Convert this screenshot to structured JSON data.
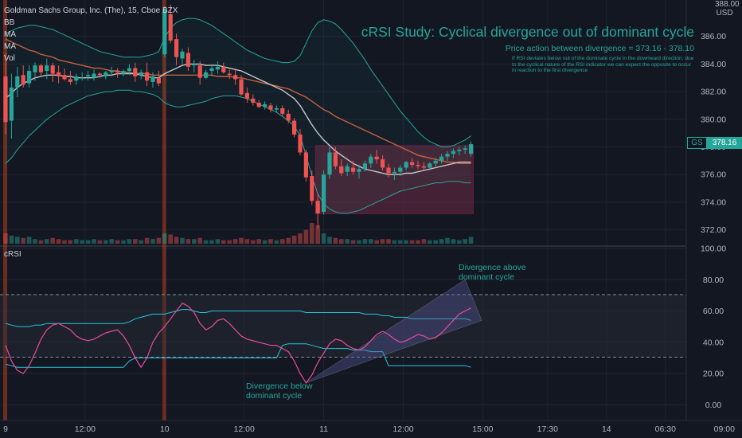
{
  "legend": {
    "symbol": "Goldman Sachs Group, Inc. (The), 15, Cboe BZX",
    "items": [
      "BB",
      "MA",
      "MA",
      "Vol"
    ]
  },
  "annotations": {
    "title": "cRSI Study: Cyclical divergence out of dominant cycle",
    "subtitle": "Price action between divergence = 373.16 - 378.10",
    "note": "If RSI deviates below out of the dominate cycle in the downward direction, due to the cyclical nature of the RSI indicator we can expect the opposite to occur in reaction to the first divergence",
    "divergence_above": [
      "Divergence above",
      "dominant cycle"
    ],
    "divergence_below": [
      "Divergence below",
      "dominant cycle"
    ]
  },
  "price_axis": {
    "currency": "USD",
    "top_partial": "388.00",
    "last_symbol": "GS",
    "last_value": "378.16"
  },
  "rsi_pane": {
    "label": "cRSI"
  },
  "colors": {
    "background": "#131722",
    "up": "#26a69a",
    "down": "#ef5350",
    "bb": "#26a69a",
    "ma_fast": "#c8c8c8",
    "ma_slow": "#c9603f",
    "rsi": "#ec4b9c",
    "band": "#26c6da",
    "box_fill": "#6d2a45",
    "triangle": "#5c5fa8",
    "highlight": "#a33b1e"
  },
  "chart_data": [
    {
      "type": "candlestick",
      "title": "",
      "ylim": [
        371,
        388.4
      ],
      "y_ticks": [
        "372.00",
        "374.00",
        "376.00",
        "378.00",
        "380.00",
        "382.00",
        "384.00",
        "386.00"
      ],
      "x_ticks": [
        "9",
        "12:00",
        "10",
        "12:00",
        "11",
        "12:00",
        "15:00",
        "17:30",
        "14",
        "06:30",
        "09:00"
      ],
      "x_tick_index": [
        0,
        13.5,
        27,
        40.5,
        54,
        67.5,
        81,
        92,
        102,
        112,
        122
      ],
      "candles": [
        [
          383.1,
          384.8,
          378.9,
          379.8
        ],
        [
          379.9,
          383.3,
          378.6,
          382.3
        ],
        [
          382.3,
          383.8,
          381.6,
          383.1
        ],
        [
          383.2,
          383.9,
          382.3,
          382.5
        ],
        [
          382.6,
          383.9,
          382.3,
          383.5
        ],
        [
          383.4,
          384.1,
          382.8,
          383.9
        ],
        [
          383.9,
          384.0,
          383.1,
          383.4
        ],
        [
          383.5,
          384.4,
          382.9,
          383.9
        ],
        [
          383.9,
          384.1,
          382.7,
          383.3
        ],
        [
          383.4,
          383.9,
          382.6,
          383.1
        ],
        [
          383.2,
          383.7,
          382.8,
          382.9
        ],
        [
          382.9,
          383.5,
          382.5,
          382.7
        ],
        [
          382.8,
          383.3,
          382.5,
          383.1
        ],
        [
          383.0,
          383.4,
          382.8,
          383.0
        ],
        [
          383.1,
          383.5,
          382.8,
          383.2
        ],
        [
          383.0,
          383.6,
          382.8,
          383.3
        ],
        [
          383.3,
          383.4,
          383.0,
          383.2
        ],
        [
          383.1,
          383.5,
          382.9,
          383.4
        ],
        [
          383.4,
          383.8,
          383.1,
          383.5
        ],
        [
          383.5,
          383.7,
          383.0,
          383.4
        ],
        [
          383.3,
          383.6,
          383.1,
          383.5
        ],
        [
          383.5,
          384.0,
          383.2,
          383.7
        ],
        [
          383.7,
          384.1,
          382.7,
          383.1
        ],
        [
          383.2,
          383.6,
          382.9,
          383.4
        ],
        [
          383.4,
          384.1,
          382.4,
          382.8
        ],
        [
          382.7,
          383.4,
          382.3,
          383.1
        ],
        [
          383.0,
          383.5,
          382.4,
          382.6
        ],
        [
          384.7,
          388.2,
          384.5,
          387.9
        ],
        [
          387.6,
          388.3,
          385.5,
          385.7
        ],
        [
          385.8,
          386.2,
          383.9,
          384.5
        ],
        [
          384.4,
          385.1,
          384.0,
          384.9
        ],
        [
          384.8,
          385.2,
          383.5,
          383.8
        ],
        [
          383.9,
          384.3,
          383.4,
          384.0
        ],
        [
          383.9,
          384.2,
          382.5,
          383.0
        ],
        [
          383.0,
          383.6,
          382.9,
          383.4
        ],
        [
          383.5,
          384.0,
          383.1,
          383.7
        ],
        [
          383.6,
          384.2,
          383.3,
          383.8
        ],
        [
          383.8,
          384.1,
          383.3,
          383.4
        ],
        [
          383.3,
          383.6,
          382.9,
          383.2
        ],
        [
          383.2,
          383.7,
          382.5,
          382.9
        ],
        [
          382.9,
          383.2,
          381.7,
          381.8
        ],
        [
          381.9,
          382.3,
          381.2,
          381.5
        ],
        [
          381.5,
          381.8,
          381.0,
          381.2
        ],
        [
          381.2,
          381.4,
          380.8,
          380.9
        ],
        [
          380.9,
          381.3,
          380.7,
          381.1
        ],
        [
          381.0,
          381.2,
          380.5,
          380.7
        ],
        [
          380.7,
          381.0,
          380.5,
          380.8
        ],
        [
          380.8,
          381.0,
          380.2,
          380.4
        ],
        [
          380.4,
          380.7,
          379.7,
          379.9
        ],
        [
          379.9,
          380.1,
          378.7,
          378.9
        ],
        [
          378.9,
          379.3,
          377.4,
          377.6
        ],
        [
          377.6,
          377.8,
          375.5,
          375.8
        ],
        [
          375.9,
          376.3,
          373.8,
          374.1
        ],
        [
          374.1,
          374.6,
          372.1,
          373.2
        ],
        [
          373.3,
          376.3,
          373.1,
          376.0
        ],
        [
          376.0,
          378.0,
          375.7,
          377.6
        ],
        [
          377.6,
          378.0,
          376.4,
          376.6
        ],
        [
          376.6,
          377.1,
          375.9,
          376.1
        ],
        [
          376.2,
          376.8,
          375.9,
          376.6
        ],
        [
          376.5,
          377.0,
          376.0,
          376.2
        ],
        [
          376.2,
          376.7,
          375.7,
          376.4
        ],
        [
          376.4,
          377.0,
          376.2,
          376.8
        ],
        [
          376.8,
          377.5,
          376.5,
          377.3
        ],
        [
          377.3,
          377.8,
          376.8,
          377.1
        ],
        [
          377.1,
          377.4,
          376.3,
          376.5
        ],
        [
          376.5,
          376.8,
          375.8,
          376.1
        ],
        [
          376.1,
          376.5,
          375.6,
          376.2
        ],
        [
          376.2,
          376.7,
          375.9,
          376.5
        ],
        [
          376.5,
          377.0,
          376.3,
          376.9
        ],
        [
          376.9,
          377.2,
          376.5,
          376.7
        ],
        [
          376.7,
          377.0,
          376.4,
          376.6
        ],
        [
          376.6,
          376.9,
          376.3,
          376.5
        ],
        [
          376.5,
          376.9,
          376.3,
          376.8
        ],
        [
          376.8,
          377.2,
          376.5,
          377.0
        ],
        [
          377.0,
          377.5,
          376.8,
          377.3
        ],
        [
          377.3,
          377.7,
          377.0,
          377.5
        ],
        [
          377.5,
          377.9,
          377.2,
          377.7
        ],
        [
          377.7,
          378.0,
          377.4,
          377.8
        ],
        [
          377.8,
          378.1,
          377.5,
          377.9
        ],
        [
          377.5,
          378.4,
          377.3,
          378.2
        ]
      ],
      "bb_upper": [
        386.2,
        386.4,
        386.6,
        386.7,
        386.8,
        386.8,
        386.7,
        386.6,
        386.5,
        386.3,
        386.1,
        385.9,
        385.7,
        385.5,
        385.3,
        385.1,
        384.9,
        384.8,
        384.7,
        384.6,
        384.5,
        384.5,
        384.5,
        384.5,
        384.6,
        384.7,
        384.9,
        385.9,
        386.6,
        387.0,
        387.2,
        387.3,
        387.3,
        387.2,
        387.0,
        386.8,
        386.5,
        386.2,
        385.9,
        385.6,
        385.3,
        385.0,
        384.8,
        384.6,
        384.4,
        384.3,
        384.2,
        384.1,
        384.1,
        384.2,
        384.6,
        385.5,
        386.4,
        387.0,
        387.2,
        387.1,
        386.9,
        386.5,
        386.0,
        385.5,
        384.9,
        384.3,
        383.6,
        383.0,
        382.4,
        381.8,
        381.2,
        380.6,
        380.1,
        379.6,
        379.1,
        378.7,
        378.4,
        378.2,
        378.0,
        378.0,
        378.1,
        378.3,
        378.5,
        378.8
      ],
      "bb_lower": [
        376.8,
        377.2,
        377.8,
        378.3,
        378.8,
        379.2,
        379.6,
        380.0,
        380.3,
        380.6,
        380.9,
        381.1,
        381.3,
        381.5,
        381.7,
        381.8,
        381.9,
        382.0,
        382.0,
        382.1,
        382.1,
        382.1,
        382.0,
        382.0,
        381.9,
        381.8,
        381.6,
        381.2,
        381.0,
        380.9,
        380.9,
        381.0,
        381.1,
        381.2,
        381.3,
        381.5,
        381.6,
        381.7,
        381.7,
        381.7,
        381.6,
        381.5,
        381.3,
        381.1,
        380.9,
        380.7,
        380.5,
        380.2,
        379.9,
        379.5,
        378.8,
        377.4,
        375.9,
        374.6,
        373.9,
        373.5,
        373.3,
        373.2,
        373.2,
        373.3,
        373.4,
        373.6,
        373.8,
        374.0,
        374.2,
        374.4,
        374.6,
        374.8,
        374.9,
        375.0,
        375.1,
        375.2,
        375.3,
        375.4,
        375.4,
        375.5,
        375.5,
        375.5,
        375.4,
        375.4
      ],
      "ma_fast": [
        381.5,
        381.9,
        382.3,
        382.6,
        382.8,
        383.0,
        383.1,
        383.2,
        383.2,
        383.2,
        383.1,
        383.1,
        383.0,
        383.0,
        383.0,
        383.0,
        383.1,
        383.2,
        383.2,
        383.3,
        383.3,
        383.3,
        383.3,
        383.2,
        383.1,
        383.0,
        383.0,
        383.3,
        383.5,
        383.7,
        383.9,
        384.0,
        384.0,
        384.0,
        383.9,
        383.9,
        383.9,
        383.8,
        383.7,
        383.6,
        383.5,
        383.3,
        383.1,
        382.9,
        382.7,
        382.5,
        382.3,
        382.1,
        381.8,
        381.5,
        381.0,
        380.3,
        379.6,
        379.0,
        378.5,
        378.1,
        377.7,
        377.4,
        377.1,
        376.8,
        376.6,
        376.4,
        376.3,
        376.2,
        376.1,
        376.0,
        376.0,
        376.0,
        376.1,
        376.1,
        376.2,
        376.3,
        376.4,
        376.5,
        376.6,
        376.7,
        376.8,
        376.9,
        376.9,
        376.9
      ],
      "ma_slow": [
        385.8,
        385.6,
        385.4,
        385.2,
        385.0,
        384.9,
        384.7,
        384.6,
        384.5,
        384.3,
        384.2,
        384.1,
        384.0,
        383.9,
        383.8,
        383.7,
        383.7,
        383.6,
        383.5,
        383.5,
        383.4,
        383.4,
        383.3,
        383.3,
        383.3,
        383.2,
        383.2,
        383.2,
        383.2,
        383.2,
        383.2,
        383.2,
        383.2,
        383.2,
        383.2,
        383.2,
        383.1,
        383.1,
        383.1,
        383.0,
        383.0,
        382.9,
        382.8,
        382.7,
        382.6,
        382.5,
        382.4,
        382.3,
        382.2,
        382.0,
        381.8,
        381.6,
        381.3,
        381.0,
        380.7,
        380.5,
        380.2,
        380.0,
        379.8,
        379.6,
        379.4,
        379.2,
        379.0,
        378.8,
        378.6,
        378.4,
        378.2,
        378.0,
        377.8,
        377.6,
        377.4,
        377.3,
        377.2,
        377.1,
        377.0,
        376.9,
        376.9,
        376.8,
        376.8,
        376.8
      ],
      "volume": [
        9,
        7,
        6,
        5,
        6,
        4,
        3,
        4,
        5,
        4,
        3,
        3,
        4,
        3,
        3,
        4,
        3,
        3,
        4,
        3,
        3,
        4,
        4,
        3,
        5,
        4,
        5,
        9,
        8,
        6,
        5,
        4,
        4,
        5,
        3,
        3,
        4,
        3,
        3,
        4,
        5,
        4,
        3,
        4,
        3,
        4,
        3,
        4,
        5,
        7,
        9,
        12,
        18,
        16,
        9,
        6,
        5,
        4,
        4,
        3,
        3,
        4,
        4,
        3,
        4,
        4,
        3,
        3,
        3,
        3,
        3,
        4,
        3,
        3,
        4,
        5,
        4,
        3,
        4,
        6
      ],
      "box_price_range": [
        373.16,
        378.1
      ]
    },
    {
      "type": "line",
      "title": "",
      "ylim": [
        -8,
        100
      ],
      "y_ticks": [
        "0.00",
        "20.00",
        "40.00",
        "60.00",
        "80.00",
        "100.00"
      ],
      "dashed_levels": [
        70.5,
        30.5
      ],
      "crsi": [
        38,
        28,
        22,
        20,
        25,
        33,
        42,
        48,
        51,
        52,
        50,
        48,
        44,
        42,
        41,
        42,
        44,
        46,
        47,
        48,
        44,
        38,
        30,
        24,
        30,
        40,
        46,
        50,
        55,
        60,
        65,
        63,
        59,
        52,
        48,
        50,
        54,
        55,
        52,
        48,
        44,
        42,
        41,
        40,
        39,
        38,
        38,
        36,
        34,
        28,
        20,
        14,
        19,
        27,
        33,
        39,
        42,
        41,
        38,
        36,
        35,
        37,
        41,
        45,
        47,
        45,
        42,
        40,
        41,
        43,
        45,
        44,
        42,
        43,
        46,
        50,
        54,
        58,
        60,
        62
      ],
      "upper_band": [
        52,
        51,
        50,
        50,
        50,
        51,
        51,
        52,
        52,
        52,
        52,
        52,
        52,
        52,
        52,
        52,
        52,
        52,
        52,
        52,
        52,
        53,
        55,
        56,
        57,
        58,
        58,
        58,
        59,
        60,
        61,
        61,
        60,
        59,
        59,
        60,
        60,
        60,
        60,
        60,
        60,
        60,
        60,
        60,
        60,
        60,
        60,
        60,
        60,
        60,
        60,
        59,
        59,
        59,
        59,
        59,
        59,
        59,
        59,
        59,
        59,
        58,
        58,
        58,
        57,
        57,
        56,
        56,
        56,
        55,
        55,
        55,
        55,
        55,
        55,
        55,
        55,
        55,
        55,
        54
      ],
      "lower_band": [
        26,
        25,
        24,
        24,
        24,
        24,
        24,
        24,
        24,
        24,
        24,
        24,
        24,
        24,
        24,
        24,
        24,
        24,
        24,
        24,
        24,
        28,
        30,
        30,
        30,
        30,
        30,
        30,
        30,
        30,
        30,
        30,
        30,
        30,
        30,
        30,
        30,
        30,
        30,
        30,
        30,
        30,
        30,
        30,
        30,
        30,
        30,
        38,
        39,
        39,
        39,
        39,
        38,
        37,
        36,
        36,
        36,
        36,
        36,
        35,
        35,
        35,
        34,
        34,
        34,
        25,
        25,
        25,
        25,
        25,
        25,
        25,
        25,
        25,
        25,
        25,
        25,
        25,
        25,
        24
      ]
    }
  ]
}
